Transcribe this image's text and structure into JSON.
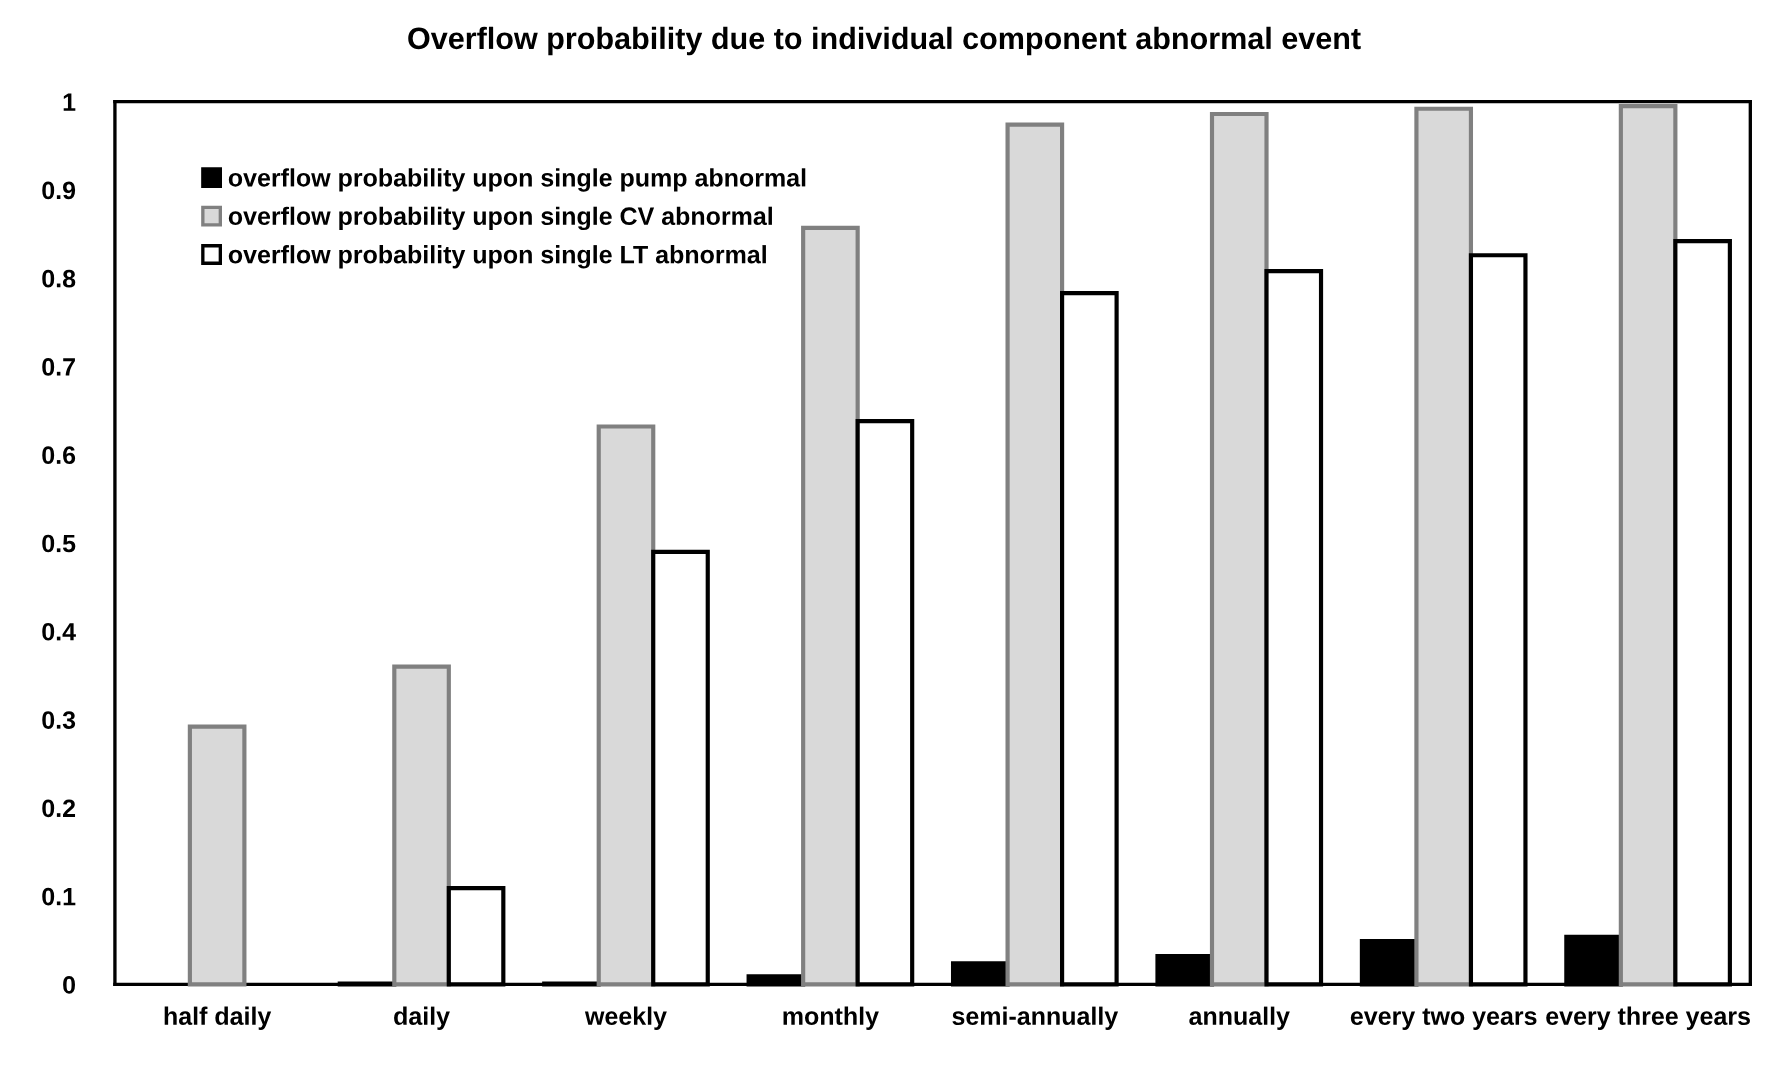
{
  "chart_data": {
    "type": "bar",
    "title": "Overflow probability due to individual component abnormal event",
    "categories": [
      "half daily",
      "daily",
      "weekly",
      "monthly",
      "semi-annually",
      "annually",
      "every two years",
      "every three years"
    ],
    "series": [
      {
        "name": "overflow probability upon single pump abnormal",
        "color": "#000000",
        "values": [
          0,
          0.001,
          0.001,
          0.009,
          0.024,
          0.032,
          0.049,
          0.054
        ]
      },
      {
        "name": "overflow probability upon single CV abnormal",
        "color": "#d9d9d9",
        "values": [
          0.292,
          0.36,
          0.632,
          0.857,
          0.974,
          0.986,
          0.992,
          0.995
        ]
      },
      {
        "name": "overflow probability upon single LT abnormal",
        "color": "#ffffff",
        "values": [
          0,
          0.109,
          0.49,
          0.638,
          0.783,
          0.808,
          0.826,
          0.842
        ]
      }
    ],
    "ylim": [
      0,
      1
    ],
    "yticks": [
      0,
      0.1,
      0.2,
      0.3,
      0.4,
      0.5,
      0.6,
      0.7,
      0.8,
      0.9,
      1
    ],
    "grid": false,
    "legend": "top left"
  }
}
